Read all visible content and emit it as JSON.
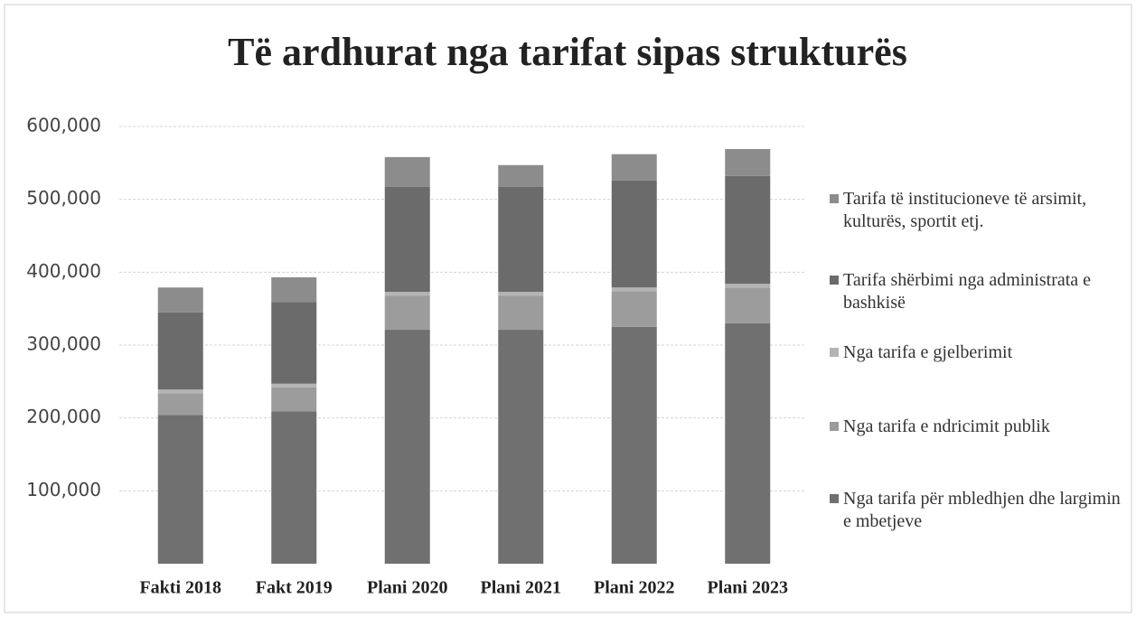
{
  "chart_data": {
    "type": "stacked_bar",
    "title": "Të ardhurat nga tarifat sipas strukturës",
    "categories": [
      "Fakti 2018",
      "Fakt 2019",
      "Plani 2020",
      "Plani 2021",
      "Plani 2022",
      "Plani 2023"
    ],
    "series": [
      {
        "name": "Nga tarifa për mbledhjen dhe largimin e mbetjeve",
        "color": "#707070",
        "values": [
          204000,
          209000,
          321000,
          321000,
          325000,
          330000
        ]
      },
      {
        "name": "Nga tarifa e ndricimit publik",
        "color": "#9c9c9c",
        "values": [
          30000,
          33000,
          47000,
          47000,
          49000,
          49000
        ]
      },
      {
        "name": "Nga tarifa e gjelberimit",
        "color": "#b4b4b4",
        "values": [
          5000,
          5000,
          5000,
          5000,
          5000,
          5000
        ]
      },
      {
        "name": "Tarifa shërbimi nga administrata e bashkisë",
        "color": "#6b6b6b",
        "values": [
          106000,
          112000,
          144000,
          144000,
          147000,
          148000
        ]
      },
      {
        "name": "Tarifa të institucioneve të arsimit, kulturës, sportit etj.",
        "color": "#8c8c8c",
        "values": [
          34000,
          34000,
          41000,
          30000,
          36000,
          37000
        ]
      }
    ],
    "ylim": [
      0,
      600000
    ],
    "yticks": [
      {
        "value": 100000,
        "label": "100,000"
      },
      {
        "value": 200000,
        "label": "200,000"
      },
      {
        "value": 300000,
        "label": "300,000"
      },
      {
        "value": 400000,
        "label": "400,000"
      },
      {
        "value": 500000,
        "label": "500,000"
      },
      {
        "value": 600000,
        "label": "600,000"
      }
    ],
    "grid": true,
    "legend": "right"
  }
}
